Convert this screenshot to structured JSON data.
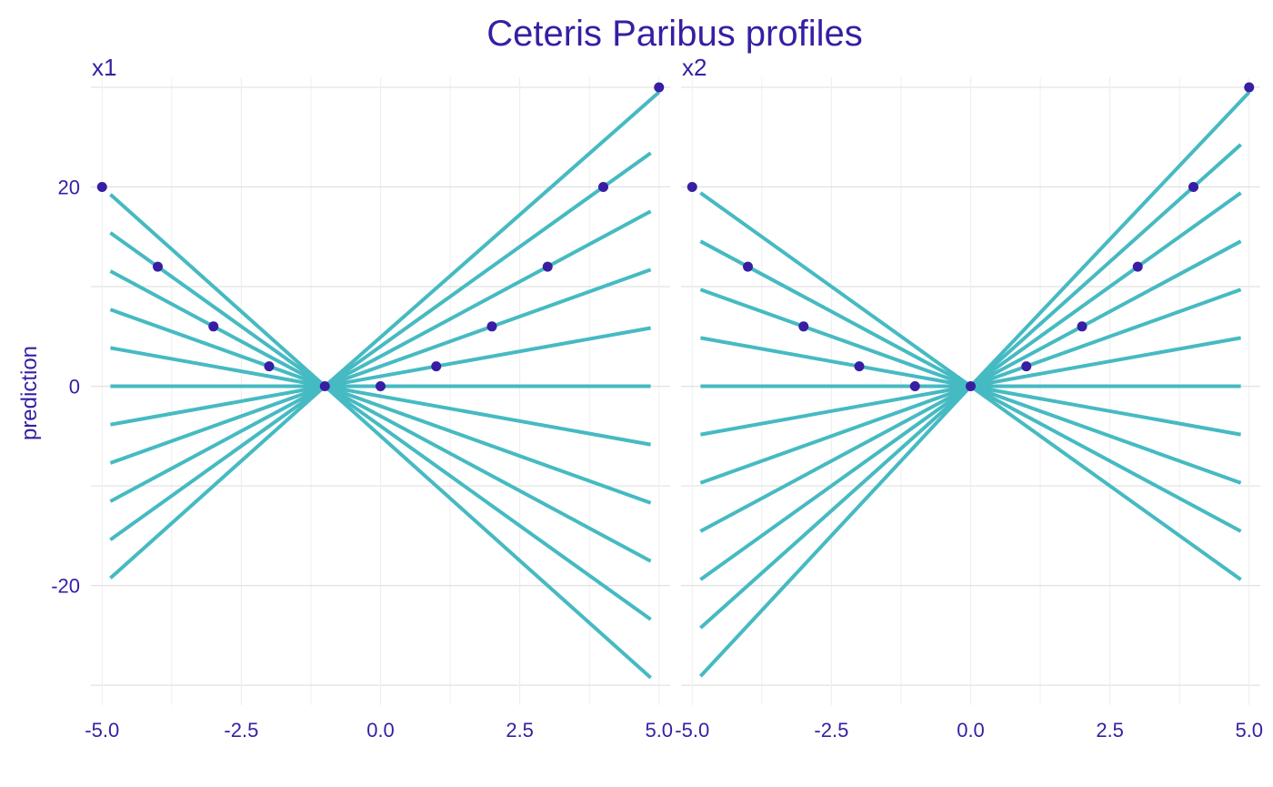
{
  "chart_data": {
    "type": "line",
    "title": "Ceteris Paribus profiles",
    "ylabel": "prediction",
    "xlabel": "",
    "colors": {
      "text": "#371EA3",
      "line": "#46BAC2",
      "point": "#371EA3",
      "grid_major": "#E2E2E2",
      "grid_minor": "#EFEFEF"
    },
    "ylim": [
      -32,
      31
    ],
    "y_ticks": [
      {
        "value": -20,
        "label": "-20"
      },
      {
        "value": 0,
        "label": "0"
      },
      {
        "value": 20,
        "label": "20"
      }
    ],
    "grid": true,
    "legend": "none",
    "panels": [
      {
        "name": "x1",
        "xlim": [
          -5.2,
          5.2
        ],
        "x_ticks": [
          {
            "value": -5,
            "label": "-5.0"
          },
          {
            "value": -2.5,
            "label": "-2.5"
          },
          {
            "value": 0,
            "label": "0.0"
          },
          {
            "value": 2.5,
            "label": "2.5"
          },
          {
            "value": 5,
            "label": "5.0"
          }
        ],
        "lines": [
          {
            "x": [
              -4.85,
              -1,
              5
            ],
            "y": [
              19.25,
              0,
              29.5
            ]
          },
          {
            "x": [
              -4.85,
              -1,
              4.85
            ],
            "y": [
              15.4,
              0,
              23.4
            ]
          },
          {
            "x": [
              -4.85,
              -1,
              4.85
            ],
            "y": [
              11.55,
              0,
              17.55
            ]
          },
          {
            "x": [
              -4.85,
              -1,
              4.85
            ],
            "y": [
              7.7,
              0,
              11.7
            ]
          },
          {
            "x": [
              -4.85,
              -1,
              4.85
            ],
            "y": [
              3.85,
              0,
              5.85
            ]
          },
          {
            "x": [
              -4.85,
              -1,
              4.85
            ],
            "y": [
              0,
              0,
              0
            ]
          },
          {
            "x": [
              -4.85,
              -1,
              4.85
            ],
            "y": [
              -3.85,
              0,
              -5.85
            ]
          },
          {
            "x": [
              -4.85,
              -1,
              4.85
            ],
            "y": [
              -7.7,
              0,
              -11.7
            ]
          },
          {
            "x": [
              -4.85,
              -1,
              4.85
            ],
            "y": [
              -11.55,
              0,
              -17.55
            ]
          },
          {
            "x": [
              -4.85,
              -1,
              4.85
            ],
            "y": [
              -15.4,
              0,
              -23.4
            ]
          },
          {
            "x": [
              -4.85,
              -1,
              4.85
            ],
            "y": [
              -19.25,
              0,
              -29.25
            ]
          }
        ],
        "points": [
          {
            "x": -5,
            "y": 20
          },
          {
            "x": -4,
            "y": 12
          },
          {
            "x": -3,
            "y": 6
          },
          {
            "x": -2,
            "y": 2
          },
          {
            "x": -1,
            "y": 0
          },
          {
            "x": 0,
            "y": 0
          },
          {
            "x": 1,
            "y": 2
          },
          {
            "x": 2,
            "y": 6
          },
          {
            "x": 3,
            "y": 12
          },
          {
            "x": 4,
            "y": 20
          },
          {
            "x": 5,
            "y": 30
          }
        ]
      },
      {
        "name": "x2",
        "xlim": [
          -5.2,
          5.2
        ],
        "x_ticks": [
          {
            "value": -5,
            "label": "-5.0"
          },
          {
            "value": -2.5,
            "label": "-2.5"
          },
          {
            "value": 0,
            "label": "0.0"
          },
          {
            "value": 2.5,
            "label": "2.5"
          },
          {
            "value": 5,
            "label": "5.0"
          }
        ],
        "lines": [
          {
            "x": [
              -4.85,
              0,
              5
            ],
            "y": [
              19.4,
              0,
              29.5
            ]
          },
          {
            "x": [
              -4.85,
              0,
              4.85
            ],
            "y": [
              14.55,
              0,
              24.25
            ]
          },
          {
            "x": [
              -4.85,
              0,
              4.85
            ],
            "y": [
              9.7,
              0,
              19.4
            ]
          },
          {
            "x": [
              -4.85,
              0,
              4.85
            ],
            "y": [
              4.85,
              0,
              14.55
            ]
          },
          {
            "x": [
              -4.85,
              0,
              4.85
            ],
            "y": [
              0,
              0,
              9.7
            ]
          },
          {
            "x": [
              -4.85,
              0,
              4.85
            ],
            "y": [
              -4.85,
              0,
              4.85
            ]
          },
          {
            "x": [
              -4.85,
              0,
              4.85
            ],
            "y": [
              -9.7,
              0,
              0
            ]
          },
          {
            "x": [
              -4.85,
              0,
              4.85
            ],
            "y": [
              -14.55,
              0,
              -4.85
            ]
          },
          {
            "x": [
              -4.85,
              0,
              4.85
            ],
            "y": [
              -19.4,
              0,
              -9.7
            ]
          },
          {
            "x": [
              -4.85,
              0,
              4.85
            ],
            "y": [
              -24.25,
              0,
              -14.55
            ]
          },
          {
            "x": [
              -4.85,
              0,
              4.85
            ],
            "y": [
              -29.1,
              0,
              -19.4
            ]
          }
        ],
        "points": [
          {
            "x": -5,
            "y": 20
          },
          {
            "x": -4,
            "y": 12
          },
          {
            "x": -3,
            "y": 6
          },
          {
            "x": -2,
            "y": 2
          },
          {
            "x": -1,
            "y": 0
          },
          {
            "x": 0,
            "y": 0
          },
          {
            "x": 1,
            "y": 2
          },
          {
            "x": 2,
            "y": 6
          },
          {
            "x": 3,
            "y": 12
          },
          {
            "x": 4,
            "y": 20
          },
          {
            "x": 5,
            "y": 30
          }
        ]
      }
    ]
  }
}
